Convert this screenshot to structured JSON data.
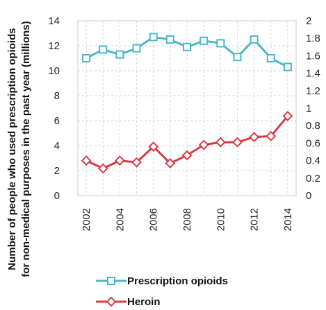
{
  "chart_data": {
    "type": "line",
    "title": "",
    "xlabel": "",
    "ylabel": "Number of people who used prescription opioids for non-medical purposes in the past year (millions)",
    "ylabel_lines": [
      "Number of people who used prescription opioids",
      "for non-medical purposes in the past year (millions)"
    ],
    "x": [
      2002,
      2003,
      2004,
      2005,
      2006,
      2007,
      2008,
      2009,
      2010,
      2011,
      2012,
      2013,
      2014
    ],
    "xlim": [
      2001.5,
      2014.5
    ],
    "xticks": [
      "2002",
      "2004",
      "2006",
      "2008",
      "2010",
      "2012",
      "2014"
    ],
    "xtick_values": [
      2002,
      2004,
      2006,
      2008,
      2010,
      2012,
      2014
    ],
    "ylim": [
      0,
      14
    ],
    "yticks": [
      "0",
      "2",
      "4",
      "6",
      "8",
      "10",
      "12",
      "14"
    ],
    "ytick_values": [
      0,
      2,
      4,
      6,
      8,
      10,
      12,
      14
    ],
    "y2lim": [
      0,
      2
    ],
    "y2ticks": [
      "0",
      "0.2",
      "0.4",
      "0.6",
      "0.8",
      "1",
      "1.2",
      "1.4",
      "1.6",
      "1.8",
      "2"
    ],
    "y2tick_values": [
      0,
      0.2,
      0.4,
      0.6,
      0.8,
      1.0,
      1.2,
      1.4,
      1.6,
      1.8,
      2.0
    ],
    "grid": true,
    "legend_position": "bottom",
    "series": [
      {
        "name": "Prescription opioids",
        "axis": "left",
        "marker": "square",
        "color": "#4db8c8",
        "values": [
          11.0,
          11.7,
          11.3,
          11.8,
          12.7,
          12.5,
          11.9,
          12.4,
          12.2,
          11.1,
          12.5,
          11.0,
          10.3
        ]
      },
      {
        "name": "Heroin",
        "axis": "right",
        "marker": "diamond",
        "color": "#d93a44",
        "values": [
          0.4,
          0.31,
          0.4,
          0.38,
          0.56,
          0.37,
          0.46,
          0.58,
          0.61,
          0.61,
          0.67,
          0.68,
          0.91
        ]
      }
    ]
  }
}
